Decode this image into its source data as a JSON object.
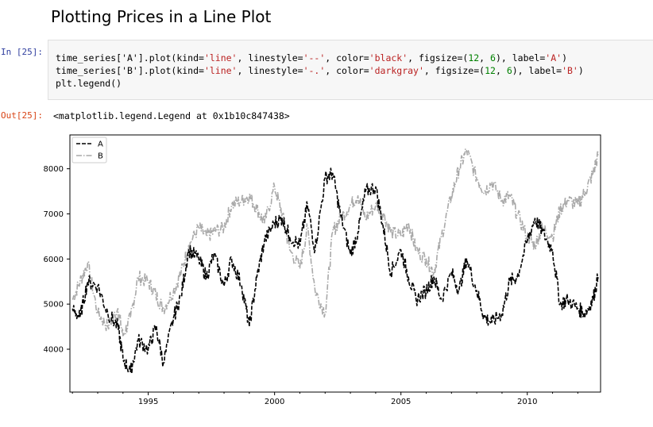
{
  "notebook": {
    "heading": "Plotting Prices in a Line Plot",
    "input_prompt": "In [25]:",
    "output_prompt": "Out[25]:",
    "code": {
      "line1": [
        "time_series['A'].plot(kind=",
        "'line'",
        ", linestyle=",
        "'--'",
        ", color=",
        "'black'",
        ", figsize=(",
        "12",
        ", ",
        "6",
        "), label=",
        "'A'",
        ")"
      ],
      "line2": [
        "time_series['B'].plot(kind=",
        "'line'",
        ", linestyle=",
        "'-.'",
        ", color=",
        "'darkgray'",
        ", figsize=(",
        "12",
        ", ",
        "6",
        "), label=",
        "'B'",
        ")"
      ],
      "line3": "plt.legend()"
    },
    "output_text": "<matplotlib.legend.Legend at 0x1b10c847438>"
  },
  "chart_data": {
    "type": "line",
    "title": "",
    "xlabel": "",
    "ylabel": "",
    "xlim": [
      1991.9,
      2012.9
    ],
    "ylim": [
      3050,
      8750
    ],
    "x_ticks": [
      1995,
      2000,
      2005,
      2010
    ],
    "y_ticks": [
      4000,
      5000,
      6000,
      7000,
      8000
    ],
    "legend_position": "top-left",
    "series": [
      {
        "name": "A",
        "color": "#000000",
        "linestyle": "dashed",
        "x": [
          1992.0,
          1992.3,
          1992.6,
          1993.0,
          1993.4,
          1993.8,
          1994.0,
          1994.3,
          1994.6,
          1995.0,
          1995.3,
          1995.6,
          1996.0,
          1996.3,
          1996.6,
          1997.0,
          1997.3,
          1997.6,
          1998.0,
          1998.3,
          1998.7,
          1999.0,
          1999.3,
          1999.6,
          2000.0,
          2000.3,
          2000.6,
          2001.0,
          2001.3,
          2001.6,
          2002.0,
          2002.3,
          2002.6,
          2003.0,
          2003.3,
          2003.6,
          2004.0,
          2004.3,
          2004.6,
          2005.0,
          2005.3,
          2005.6,
          2006.0,
          2006.3,
          2006.6,
          2007.0,
          2007.3,
          2007.6,
          2008.0,
          2008.3,
          2008.6,
          2009.0,
          2009.3,
          2009.6,
          2010.0,
          2010.3,
          2010.6,
          2011.0,
          2011.3,
          2011.6,
          2012.0,
          2012.3,
          2012.6,
          2012.8
        ],
        "values": [
          4900,
          4700,
          5500,
          5400,
          4800,
          4500,
          3800,
          3500,
          4200,
          4000,
          4500,
          3700,
          4700,
          5200,
          6200,
          6000,
          5600,
          6100,
          5400,
          6000,
          5400,
          4500,
          5600,
          6400,
          6800,
          6900,
          6500,
          6300,
          7200,
          6200,
          7800,
          7900,
          7000,
          6100,
          6600,
          7500,
          7600,
          6700,
          5700,
          6200,
          5600,
          5100,
          5300,
          5600,
          5100,
          5700,
          5300,
          6000,
          5300,
          4700,
          4600,
          4800,
          5500,
          5600,
          6400,
          6900,
          6600,
          6200,
          5000,
          5100,
          4900,
          4800,
          5100,
          5600
        ]
      },
      {
        "name": "B",
        "color": "#a9a9a9",
        "linestyle": "dashdot",
        "x": [
          1992.0,
          1992.3,
          1992.6,
          1993.0,
          1993.4,
          1993.8,
          1994.0,
          1994.3,
          1994.6,
          1995.0,
          1995.3,
          1995.6,
          1996.0,
          1996.3,
          1996.6,
          1997.0,
          1997.3,
          1997.6,
          1998.0,
          1998.3,
          1998.7,
          1999.0,
          1999.3,
          1999.6,
          2000.0,
          2000.3,
          2000.6,
          2001.0,
          2001.3,
          2001.6,
          2002.0,
          2002.3,
          2002.6,
          2003.0,
          2003.3,
          2003.6,
          2004.0,
          2004.3,
          2004.6,
          2005.0,
          2005.3,
          2005.6,
          2006.0,
          2006.3,
          2006.6,
          2007.0,
          2007.3,
          2007.6,
          2008.0,
          2008.3,
          2008.6,
          2009.0,
          2009.3,
          2009.6,
          2010.0,
          2010.3,
          2010.6,
          2011.0,
          2011.3,
          2011.6,
          2012.0,
          2012.3,
          2012.6,
          2012.8
        ],
        "values": [
          5100,
          5500,
          5900,
          4800,
          4500,
          4900,
          4300,
          4700,
          5600,
          5500,
          5200,
          4900,
          5300,
          5700,
          6300,
          6700,
          6500,
          6600,
          6700,
          7200,
          7300,
          7400,
          7100,
          6800,
          7600,
          7000,
          6200,
          5800,
          6700,
          5300,
          4800,
          6600,
          6900,
          7200,
          7400,
          6900,
          7200,
          7000,
          6600,
          6500,
          6800,
          6200,
          6000,
          5700,
          6500,
          7400,
          8000,
          8400,
          7800,
          7500,
          7700,
          7300,
          7400,
          7000,
          6500,
          6300,
          6700,
          6500,
          7100,
          7300,
          7200,
          7500,
          7900,
          8300
        ]
      }
    ]
  }
}
